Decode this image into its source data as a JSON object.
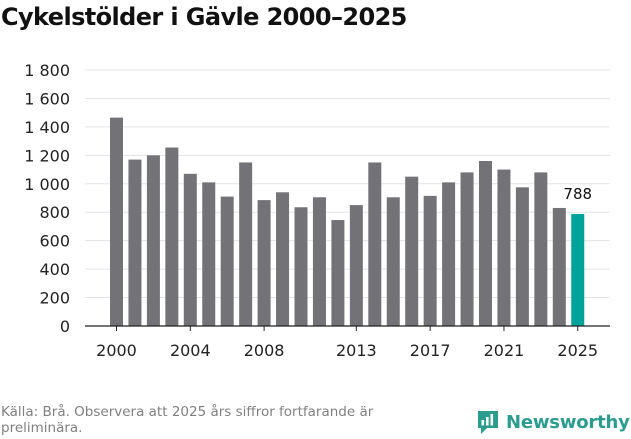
{
  "title": "Cykelstölder i Gävle 2000–2025",
  "source": "Källa: Brå. Observera att 2025 års siffror fortfarande är preliminära.",
  "brand": {
    "name": "Newsworthy",
    "icon": "newsworthy-logo-icon",
    "color": "#2a9d8f"
  },
  "chart_data": {
    "type": "bar",
    "title": "Cykelstölder i Gävle 2000–2025",
    "xlabel": "",
    "ylabel": "",
    "ylim": [
      0,
      1800
    ],
    "yticks": [
      0,
      200,
      400,
      600,
      800,
      1000,
      1200,
      1400,
      1600,
      1800
    ],
    "ytick_labels": [
      "0",
      "200",
      "400",
      "600",
      "800",
      "1 000",
      "1 200",
      "1 400",
      "1 600",
      "1 800"
    ],
    "xtick_labels": [
      "2000",
      "2004",
      "2008",
      "2013",
      "2017",
      "2021",
      "2025"
    ],
    "grid": true,
    "categories": [
      "2000",
      "2001",
      "2002",
      "2003",
      "2004",
      "2005",
      "2006",
      "2007",
      "2008",
      "2009",
      "2010",
      "2011",
      "2012",
      "2013",
      "2014",
      "2015",
      "2016",
      "2017",
      "2018",
      "2019",
      "2020",
      "2021",
      "2022",
      "2023",
      "2024",
      "2025"
    ],
    "values": [
      1465,
      1170,
      1200,
      1255,
      1070,
      1010,
      910,
      1150,
      885,
      940,
      835,
      905,
      745,
      850,
      1150,
      905,
      1050,
      915,
      1010,
      1080,
      1160,
      1100,
      975,
      1080,
      830,
      788
    ],
    "highlight": {
      "category": "2025",
      "label": "788",
      "color": "#00a39a"
    },
    "bar_color": "#737277"
  }
}
